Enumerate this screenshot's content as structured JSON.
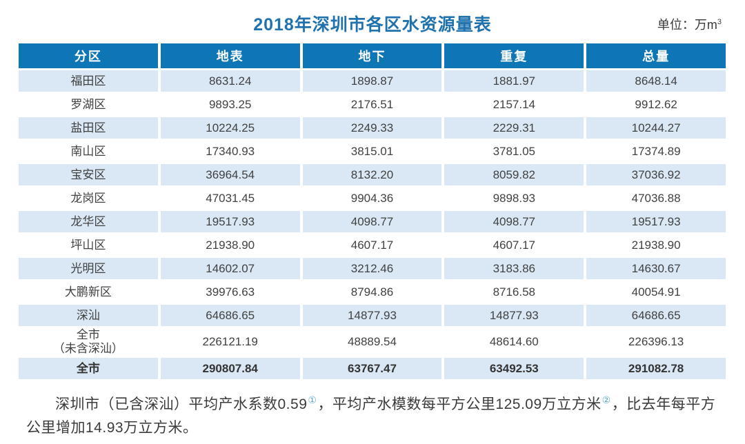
{
  "page": {
    "title": "2018年深圳市各区水资源量表",
    "unit_prefix": "单位：万m",
    "unit_superscript": "3"
  },
  "chart_data": {
    "type": "table",
    "title": "2018年深圳市各区水资源量表",
    "unit": "万m³",
    "columns": [
      "分区",
      "地表",
      "地下",
      "重复",
      "总量"
    ],
    "rows": [
      {
        "name": "福田区",
        "values": [
          "8631.24",
          "1898.87",
          "1881.97",
          "8648.14"
        ],
        "emphasis": false
      },
      {
        "name": "罗湖区",
        "values": [
          "9893.25",
          "2176.51",
          "2157.14",
          "9912.62"
        ],
        "emphasis": false
      },
      {
        "name": "盐田区",
        "values": [
          "10224.25",
          "2249.33",
          "2229.31",
          "10244.27"
        ],
        "emphasis": false
      },
      {
        "name": "南山区",
        "values": [
          "17340.93",
          "3815.01",
          "3781.05",
          "17374.89"
        ],
        "emphasis": false
      },
      {
        "name": "宝安区",
        "values": [
          "36964.54",
          "8132.20",
          "8059.82",
          "37036.92"
        ],
        "emphasis": false
      },
      {
        "name": "龙岗区",
        "values": [
          "47031.45",
          "9904.36",
          "9898.93",
          "47036.88"
        ],
        "emphasis": false
      },
      {
        "name": "龙华区",
        "values": [
          "19517.93",
          "4098.77",
          "4098.77",
          "19517.93"
        ],
        "emphasis": false
      },
      {
        "name": "坪山区",
        "values": [
          "21938.90",
          "4607.17",
          "4607.17",
          "21938.90"
        ],
        "emphasis": false
      },
      {
        "name": "光明区",
        "values": [
          "14602.07",
          "3212.46",
          "3183.86",
          "14630.67"
        ],
        "emphasis": false
      },
      {
        "name": "大鹏新区",
        "values": [
          "39976.63",
          "8794.86",
          "8716.58",
          "40054.91"
        ],
        "emphasis": false
      },
      {
        "name": "深汕",
        "values": [
          "64686.65",
          "14877.93",
          "14877.93",
          "64686.65"
        ],
        "emphasis": false
      },
      {
        "name": "全市\n（未含深汕）",
        "values": [
          "226121.19",
          "48889.54",
          "48614.60",
          "226396.13"
        ],
        "emphasis": false
      },
      {
        "name": "全市",
        "values": [
          "290807.84",
          "63767.47",
          "63492.53",
          "291082.78"
        ],
        "emphasis": true
      }
    ]
  },
  "footnote": {
    "segments": [
      {
        "text": "深圳市（已含深汕）平均产水系数0.59",
        "sup": false
      },
      {
        "text": "①",
        "sup": true
      },
      {
        "text": "，平均产水模数每平方公里125.09万立方米",
        "sup": false
      },
      {
        "text": "②",
        "sup": true
      },
      {
        "text": "，比去年每平方公里增加14.93万立方米。",
        "sup": false
      }
    ]
  },
  "colors": {
    "title_color": "#1f72ad",
    "header_bg": "#0e76b4",
    "row_alt_bg": "#d9e8f4",
    "text_color": "#414141",
    "sup_color": "#5aa7cd"
  }
}
